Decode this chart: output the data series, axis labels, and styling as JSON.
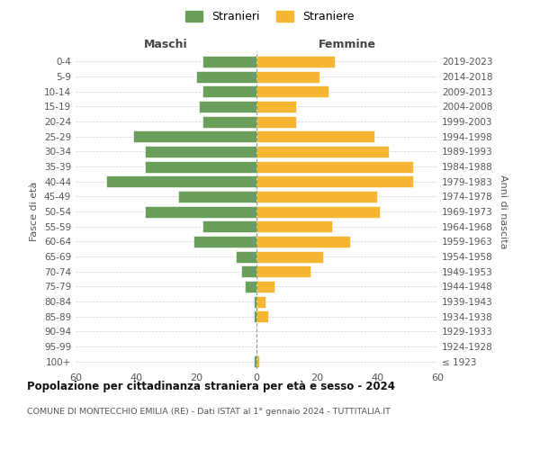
{
  "age_groups": [
    "100+",
    "95-99",
    "90-94",
    "85-89",
    "80-84",
    "75-79",
    "70-74",
    "65-69",
    "60-64",
    "55-59",
    "50-54",
    "45-49",
    "40-44",
    "35-39",
    "30-34",
    "25-29",
    "20-24",
    "15-19",
    "10-14",
    "5-9",
    "0-4"
  ],
  "birth_years": [
    "≤ 1923",
    "1924-1928",
    "1929-1933",
    "1934-1938",
    "1939-1943",
    "1944-1948",
    "1949-1953",
    "1954-1958",
    "1959-1963",
    "1964-1968",
    "1969-1973",
    "1974-1978",
    "1979-1983",
    "1984-1988",
    "1989-1993",
    "1994-1998",
    "1999-2003",
    "2004-2008",
    "2009-2013",
    "2014-2018",
    "2019-2023"
  ],
  "maschi": [
    1,
    0,
    0,
    1,
    1,
    4,
    5,
    7,
    21,
    18,
    37,
    26,
    50,
    37,
    37,
    41,
    18,
    19,
    18,
    20,
    18
  ],
  "femmine": [
    1,
    0,
    0,
    4,
    3,
    6,
    18,
    22,
    31,
    25,
    41,
    40,
    52,
    52,
    44,
    39,
    13,
    13,
    24,
    21,
    26
  ],
  "maschi_color": "#6a9e5b",
  "femmine_color": "#f5b731",
  "background_color": "#ffffff",
  "grid_color": "#cccccc",
  "title": "Popolazione per cittadinanza straniera per età e sesso - 2024",
  "subtitle": "COMUNE DI MONTECCHIO EMILIA (RE) - Dati ISTAT al 1° gennaio 2024 - TUTTITALIA.IT",
  "xlabel_maschi": "Maschi",
  "xlabel_femmine": "Femmine",
  "ylabel_left": "Fasce di età",
  "ylabel_right": "Anni di nascita",
  "legend_maschi": "Stranieri",
  "legend_femmine": "Straniere",
  "xlim": 60
}
